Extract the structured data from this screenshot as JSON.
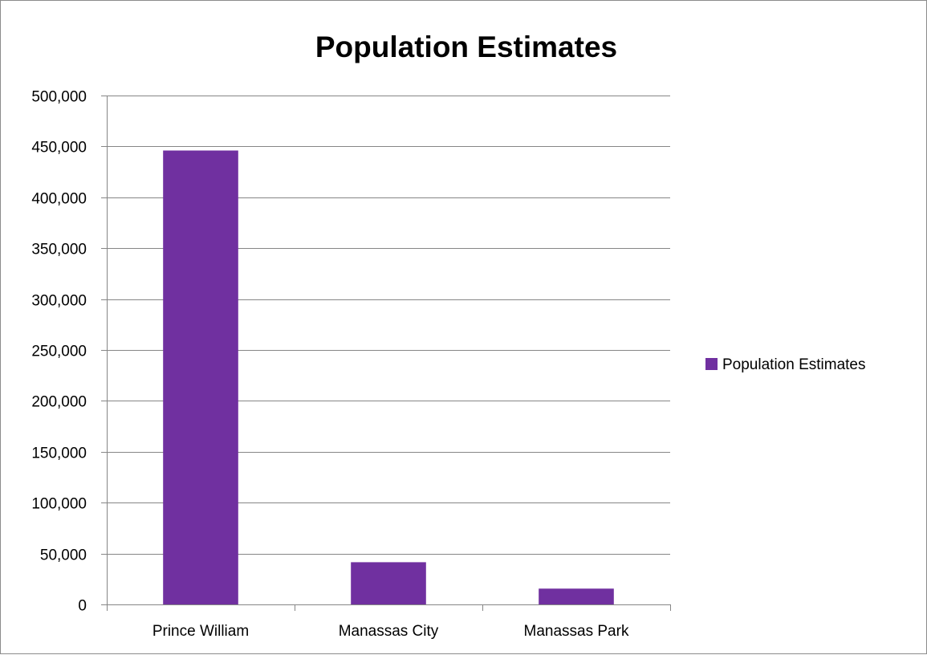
{
  "chart_data": {
    "type": "bar",
    "title": "Population Estimates",
    "categories": [
      "Prince William",
      "Manassas City",
      "Manassas Park"
    ],
    "series": [
      {
        "name": "Population Estimates",
        "values": [
          446000,
          41500,
          15500
        ],
        "color": "#7030a0"
      }
    ],
    "ylim": [
      0,
      500000
    ],
    "yticks": [
      0,
      50000,
      100000,
      150000,
      200000,
      250000,
      300000,
      350000,
      400000,
      450000,
      500000
    ],
    "ytick_labels": [
      "0",
      "50,000",
      "100,000",
      "150,000",
      "200,000",
      "250,000",
      "300,000",
      "350,000",
      "400,000",
      "450,000",
      "500,000"
    ],
    "grid": true,
    "legend_position": "right",
    "colors": {
      "bar": "#7030a0",
      "gridline": "#868686",
      "axis": "#868686",
      "border": "#8c8c8c"
    }
  }
}
